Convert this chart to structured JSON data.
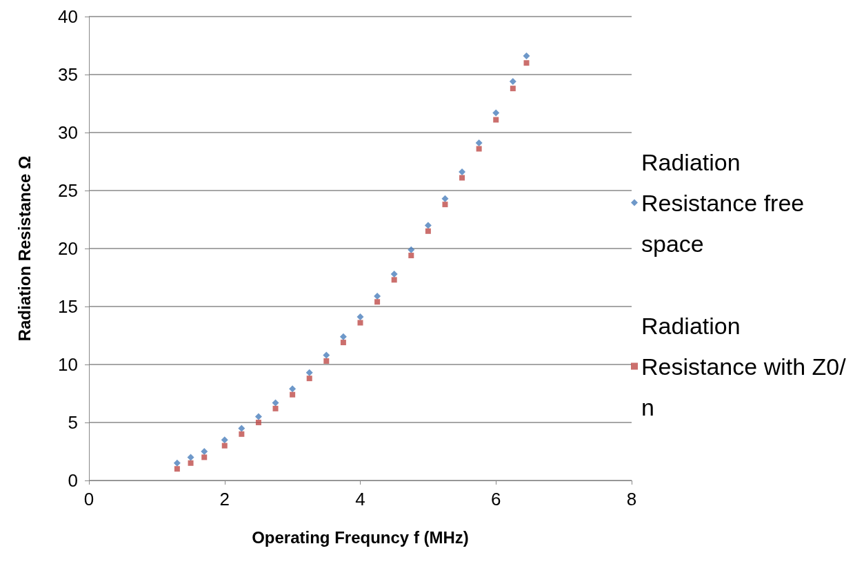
{
  "chart_data": {
    "type": "scatter",
    "xlabel": "Operating Frequncy f (MHz)",
    "ylabel": "Radiation Resistance Ω",
    "x": [
      1.3,
      1.5,
      1.7,
      2.0,
      2.25,
      2.5,
      2.75,
      3.0,
      3.25,
      3.5,
      3.75,
      4.0,
      4.25,
      4.5,
      4.75,
      5.0,
      5.25,
      5.5,
      5.75,
      6.0,
      6.25,
      6.45
    ],
    "series": [
      {
        "name": "Radiation Resistance free space",
        "color": "#4a7ebb",
        "marker": "diamond",
        "values": [
          1.5,
          2.0,
          2.5,
          3.5,
          4.5,
          5.5,
          6.7,
          7.9,
          9.3,
          10.8,
          12.4,
          14.1,
          15.9,
          17.8,
          19.9,
          22.0,
          24.3,
          26.6,
          29.1,
          31.7,
          34.4,
          36.6
        ]
      },
      {
        "name": "Radiation Resistance with Z0/n",
        "color": "#be4b48",
        "marker": "square",
        "values": [
          1.0,
          1.5,
          2.0,
          3.0,
          4.0,
          5.0,
          6.2,
          7.4,
          8.8,
          10.3,
          11.9,
          13.6,
          15.4,
          17.3,
          19.4,
          21.5,
          23.8,
          26.1,
          28.6,
          31.1,
          33.8,
          36.0
        ]
      }
    ],
    "xlim": [
      0,
      8
    ],
    "xticks": [
      0,
      2,
      4,
      6,
      8
    ],
    "ylim": [
      0,
      40
    ],
    "yticks": [
      0,
      5,
      10,
      15,
      20,
      25,
      30,
      35,
      40
    ],
    "grid": "y",
    "legend": "right"
  }
}
